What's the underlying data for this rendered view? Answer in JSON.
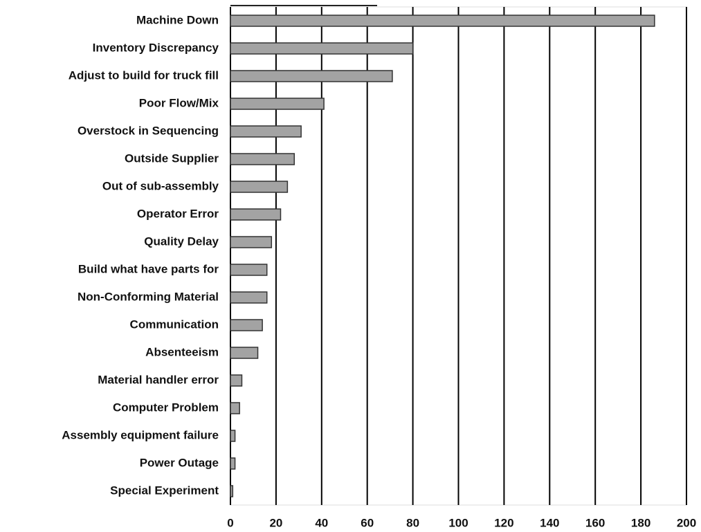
{
  "chart_data": {
    "type": "bar",
    "orientation": "horizontal",
    "categories": [
      "Machine Down",
      "Inventory Discrepancy",
      "Adjust to build for truck fill",
      "Poor Flow/Mix",
      "Overstock in Sequencing",
      "Outside Supplier",
      "Out of sub-assembly",
      "Operator Error",
      "Quality Delay",
      "Build what have parts for",
      "Non-Conforming Material",
      "Communication",
      "Absenteeism",
      "Material handler error",
      "Computer Problem",
      "Assembly equipment failure",
      "Power Outage",
      "Special Experiment"
    ],
    "values": [
      186,
      80,
      71,
      41,
      31,
      28,
      25,
      22,
      18,
      16,
      16,
      14,
      12,
      5,
      4,
      2,
      2,
      1
    ],
    "color": "#a3a3a3",
    "xlim": [
      0,
      200
    ],
    "xticks": [
      0,
      20,
      40,
      60,
      80,
      100,
      120,
      140,
      160,
      180,
      200
    ],
    "grid": true
  }
}
